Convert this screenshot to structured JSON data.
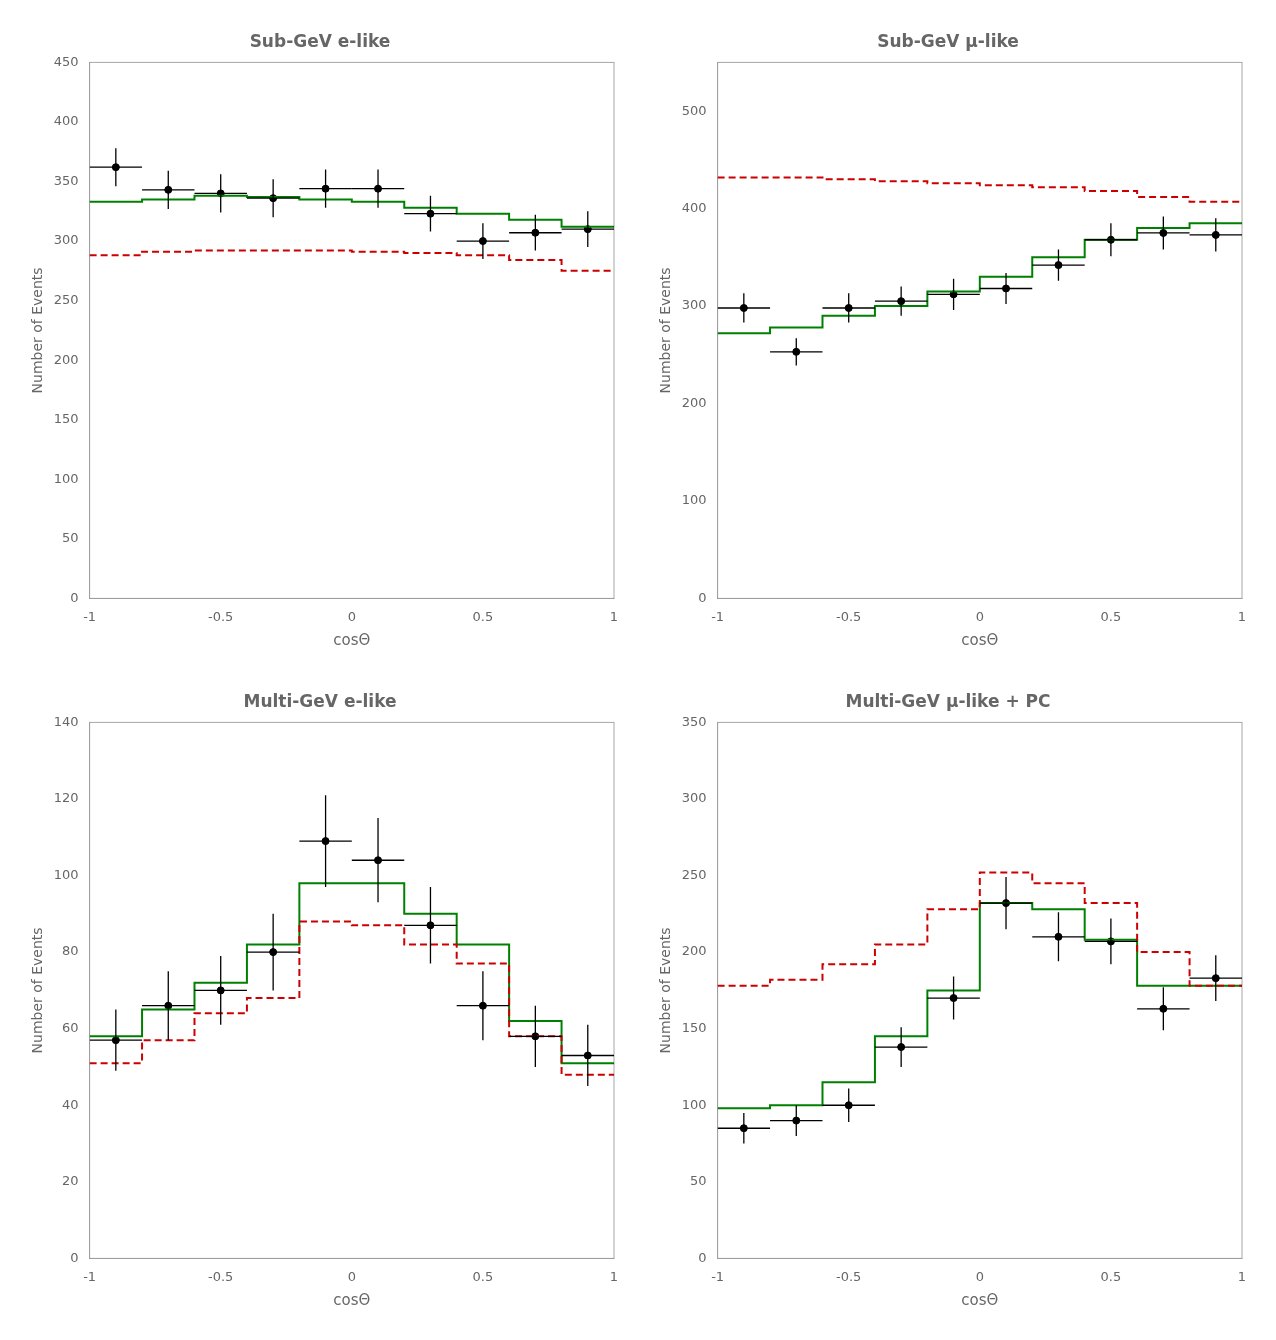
{
  "chart_data": [
    {
      "type": "histogram",
      "title": "Sub-GeV e-like",
      "x_label": "cosΘ",
      "y_label": "Number of Events",
      "xlim": [
        -1,
        1
      ],
      "xticks": [
        -1,
        -0.5,
        0,
        0.5,
        1
      ],
      "ylim": [
        0,
        450
      ],
      "yticks": [
        0,
        50,
        100,
        150,
        200,
        250,
        300,
        350,
        400,
        450
      ],
      "grid": false,
      "bins": [
        -1.0,
        -0.8,
        -0.6,
        -0.4,
        -0.2,
        0.0,
        0.2,
        0.4,
        0.6,
        0.8,
        1.0
      ],
      "series": [
        {
          "type": "step",
          "color": "#CC0000",
          "line_style": "dashed",
          "values": [
            288,
            291,
            292,
            292,
            292,
            291,
            290,
            288,
            284,
            275
          ]
        },
        {
          "type": "step",
          "color": "#008000",
          "line_style": "solid",
          "values": [
            333,
            335,
            338,
            337,
            335,
            333,
            328,
            323,
            318,
            312
          ]
        },
        {
          "type": "errorbar",
          "color": "black",
          "marker": "circle",
          "x": [
            -0.9,
            -0.7,
            -0.5,
            -0.3,
            -0.1,
            0.1,
            0.3,
            0.5,
            0.7,
            0.9
          ],
          "values": [
            362,
            343,
            340,
            336,
            344,
            344,
            323,
            300,
            307,
            310
          ],
          "xerr": [
            0.1,
            0.1,
            0.1,
            0.1,
            0.1,
            0.1,
            0.1,
            0.1,
            0.1,
            0.1
          ],
          "yerr": [
            16,
            16,
            16,
            16,
            16,
            16,
            15,
            15,
            15,
            15
          ]
        }
      ]
    },
    {
      "type": "histogram",
      "title": "Sub-GeV μ-like",
      "x_label": "cosΘ",
      "y_label": "Number of Events",
      "xlim": [
        -1,
        1
      ],
      "xticks": [
        -1,
        -0.5,
        0,
        0.5,
        1
      ],
      "ylim": [
        0,
        550
      ],
      "yticks": [
        0,
        100,
        200,
        300,
        400,
        500
      ],
      "grid": false,
      "bins": [
        -1.0,
        -0.8,
        -0.6,
        -0.4,
        -0.2,
        0.0,
        0.2,
        0.4,
        0.6,
        0.8,
        1.0
      ],
      "series": [
        {
          "type": "step",
          "color": "#CC0000",
          "line_style": "dashed",
          "values": [
            432,
            432,
            430,
            428,
            426,
            424,
            422,
            418,
            412,
            407
          ]
        },
        {
          "type": "step",
          "color": "#008000",
          "line_style": "solid",
          "values": [
            272,
            278,
            290,
            300,
            315,
            330,
            350,
            368,
            380,
            385
          ]
        },
        {
          "type": "errorbar",
          "color": "black",
          "marker": "circle",
          "x": [
            -0.9,
            -0.7,
            -0.5,
            -0.3,
            -0.1,
            0.1,
            0.3,
            0.5,
            0.7,
            0.9
          ],
          "values": [
            298,
            253,
            298,
            305,
            312,
            318,
            342,
            368,
            375,
            373
          ],
          "xerr": [
            0.1,
            0.1,
            0.1,
            0.1,
            0.1,
            0.1,
            0.1,
            0.1,
            0.1,
            0.1
          ],
          "yerr": [
            15,
            14,
            15,
            15,
            16,
            16,
            16,
            17,
            17,
            17
          ]
        }
      ]
    },
    {
      "type": "histogram",
      "title": "Multi-GeV e-like",
      "x_label": "cosΘ",
      "y_label": "Number of Events",
      "xlim": [
        -1,
        1
      ],
      "xticks": [
        -1,
        -0.5,
        0,
        0.5,
        1
      ],
      "ylim": [
        0,
        140
      ],
      "yticks": [
        0,
        20,
        40,
        60,
        80,
        100,
        120,
        140
      ],
      "grid": false,
      "bins": [
        -1.0,
        -0.8,
        -0.6,
        -0.4,
        -0.2,
        0.0,
        0.2,
        0.4,
        0.6,
        0.8,
        1.0
      ],
      "series": [
        {
          "type": "step",
          "color": "#CC0000",
          "line_style": "dashed",
          "values": [
            51,
            57,
            64,
            68,
            88,
            87,
            82,
            77,
            58,
            48
          ]
        },
        {
          "type": "step",
          "color": "#008000",
          "line_style": "solid",
          "values": [
            58,
            65,
            72,
            82,
            98,
            98,
            90,
            82,
            62,
            51
          ]
        },
        {
          "type": "errorbar",
          "color": "black",
          "marker": "circle",
          "x": [
            -0.9,
            -0.7,
            -0.5,
            -0.3,
            -0.1,
            0.1,
            0.3,
            0.5,
            0.7,
            0.9
          ],
          "values": [
            57,
            66,
            70,
            80,
            109,
            104,
            87,
            66,
            58,
            53
          ],
          "xerr": [
            0.1,
            0.1,
            0.1,
            0.1,
            0.1,
            0.1,
            0.1,
            0.1,
            0.1,
            0.1
          ],
          "yerr": [
            8,
            9,
            9,
            10,
            12,
            11,
            10,
            9,
            8,
            8
          ]
        }
      ]
    },
    {
      "type": "histogram",
      "title": "Multi-GeV μ-like + PC",
      "x_label": "cosΘ",
      "y_label": "Number of Events",
      "xlim": [
        -1,
        1
      ],
      "xticks": [
        -1,
        -0.5,
        0,
        0.5,
        1
      ],
      "ylim": [
        0,
        350
      ],
      "yticks": [
        0,
        50,
        100,
        150,
        200,
        250,
        300,
        350
      ],
      "grid": false,
      "bins": [
        -1.0,
        -0.8,
        -0.6,
        -0.4,
        -0.2,
        0.0,
        0.2,
        0.4,
        0.6,
        0.8,
        1.0
      ],
      "series": [
        {
          "type": "step",
          "color": "#CC0000",
          "line_style": "dashed",
          "values": [
            178,
            182,
            192,
            205,
            228,
            252,
            245,
            232,
            200,
            178
          ]
        },
        {
          "type": "step",
          "color": "#008000",
          "line_style": "solid",
          "values": [
            98,
            100,
            115,
            145,
            175,
            232,
            228,
            208,
            178,
            178
          ]
        },
        {
          "type": "errorbar",
          "color": "black",
          "marker": "circle",
          "x": [
            -0.9,
            -0.7,
            -0.5,
            -0.3,
            -0.1,
            0.1,
            0.3,
            0.5,
            0.7,
            0.9
          ],
          "values": [
            85,
            90,
            100,
            138,
            170,
            232,
            210,
            207,
            163,
            183
          ],
          "xerr": [
            0.1,
            0.1,
            0.1,
            0.1,
            0.1,
            0.1,
            0.1,
            0.1,
            0.1,
            0.1
          ],
          "yerr": [
            10,
            10,
            11,
            13,
            14,
            17,
            16,
            15,
            14,
            15
          ]
        }
      ]
    }
  ]
}
